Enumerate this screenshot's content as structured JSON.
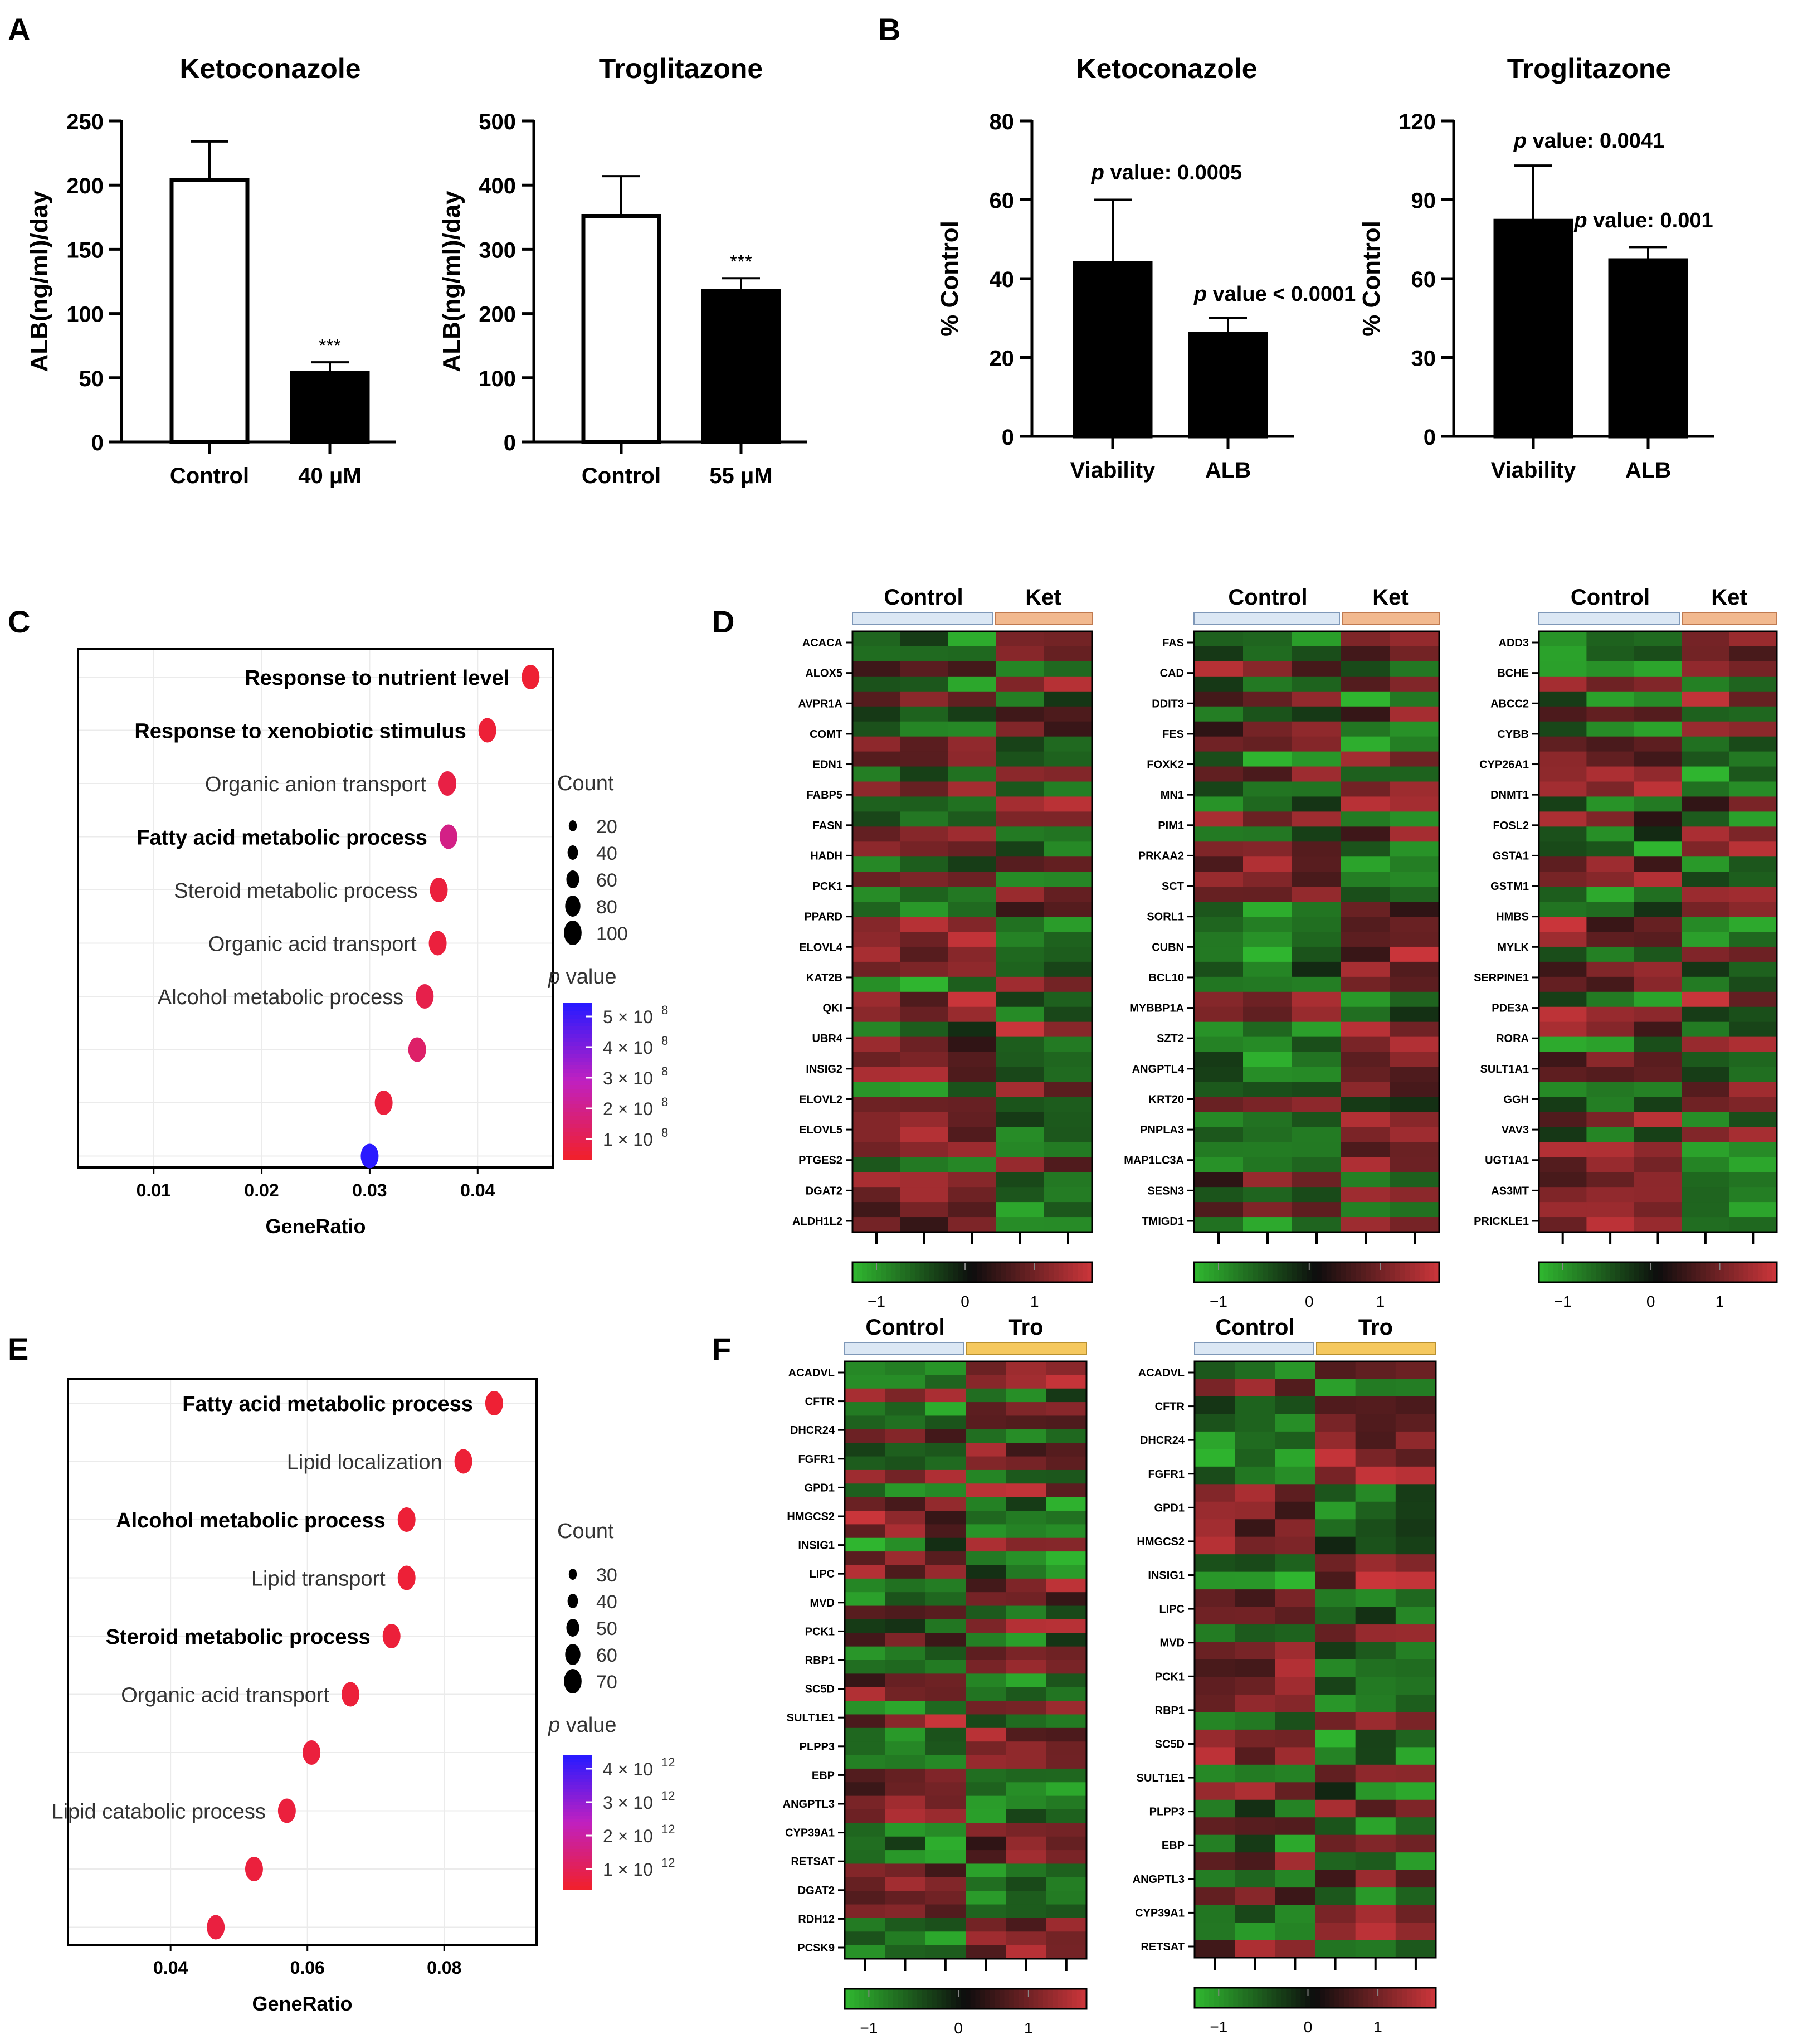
{
  "panel_letters": [
    "A",
    "B",
    "C",
    "D",
    "E",
    "F"
  ],
  "heat_colors": {
    "low": "#2fb52f",
    "mid": "#0d0d0d",
    "high": "#c9353a"
  },
  "chart_data": [
    {
      "id": "A1",
      "type": "bar",
      "title": "Ketoconazole",
      "ylabel": "ALB(ng/ml)/day",
      "categories": [
        "Control",
        "40 μM"
      ],
      "values": [
        204,
        54
      ],
      "errors": [
        30,
        8
      ],
      "fills": [
        "#ffffff",
        "#000000"
      ],
      "ylim": [
        0,
        250
      ],
      "yticks": [
        "0",
        "50",
        "100",
        "150",
        "200",
        "250"
      ],
      "annotations": [
        "",
        "***"
      ]
    },
    {
      "id": "A2",
      "type": "bar",
      "title": "Troglitazone",
      "ylabel": "ALB(ng/ml)/day",
      "categories": [
        "Control",
        "55 μM"
      ],
      "values": [
        352,
        235
      ],
      "errors": [
        62,
        20
      ],
      "fills": [
        "#ffffff",
        "#000000"
      ],
      "ylim": [
        0,
        500
      ],
      "yticks": [
        "0",
        "100",
        "200",
        "300",
        "400",
        "500"
      ],
      "annotations": [
        "",
        "***"
      ]
    },
    {
      "id": "B1",
      "type": "bar",
      "title": "Ketoconazole",
      "ylabel": "% Control",
      "categories": [
        "Viability",
        "ALB"
      ],
      "values": [
        44,
        26
      ],
      "errors": [
        16,
        4
      ],
      "fills": [
        "#000000",
        "#000000"
      ],
      "ylim": [
        0,
        80
      ],
      "yticks": [
        "0",
        "20",
        "40",
        "60",
        "80"
      ],
      "annotations": [
        "p value: 0.0005",
        "p value < 0.0001"
      ]
    },
    {
      "id": "B2",
      "type": "bar",
      "title": "Troglitazone",
      "ylabel": "% Control",
      "categories": [
        "Viability",
        "ALB"
      ],
      "values": [
        82,
        67
      ],
      "errors": [
        21,
        5
      ],
      "fills": [
        "#000000",
        "#000000"
      ],
      "ylim": [
        0,
        120
      ],
      "yticks": [
        "0",
        "30",
        "60",
        "90",
        "120"
      ],
      "annotations": [
        "p value: 0.0041",
        "p value: 0.001"
      ]
    },
    {
      "id": "C",
      "type": "scatter",
      "xlabel": "GeneRatio",
      "xlim": [
        0.003,
        0.047
      ],
      "xticks": [
        "0.01",
        "0.02",
        "0.03",
        "0.04"
      ],
      "xtick_values": [
        0.01,
        0.02,
        0.03,
        0.04
      ],
      "terms": [
        "Response to nutrient level",
        "Response to xenobiotic stimulus",
        "Organic anion transport",
        "Fatty acid metabolic process",
        "Steroid metabolic process",
        "Organic acid transport",
        "Alcohol metabolic process",
        "",
        "",
        ""
      ],
      "bold": [
        true,
        true,
        false,
        true,
        false,
        false,
        false,
        false,
        false,
        false
      ],
      "x": [
        0.0449,
        0.0409,
        0.0372,
        0.0373,
        0.0364,
        0.0363,
        0.0351,
        0.0344,
        0.0313,
        0.03
      ],
      "color_frac": [
        0.02,
        0.03,
        0.08,
        0.3,
        0.05,
        0.05,
        0.1,
        0.2,
        0.05,
        1.0
      ],
      "size_legend_title": "Count",
      "size_legend": [
        "20",
        "40",
        "60",
        "80",
        "100"
      ],
      "color_legend_title": "p value",
      "color_legend": [
        "5 × 10",
        "4 × 10",
        "3 × 10",
        "2 × 10",
        "1 × 10"
      ],
      "color_legend_exp": "8"
    },
    {
      "id": "E",
      "type": "scatter",
      "xlabel": "GeneRatio",
      "xlim": [
        0.025,
        0.0935
      ],
      "xticks": [
        "0.04",
        "0.06",
        "0.08"
      ],
      "xtick_values": [
        0.04,
        0.06,
        0.08
      ],
      "terms": [
        "Fatty acid metabolic process",
        "Lipid localization",
        "Alcohol metabolic process",
        "Lipid transport",
        "Steroid metabolic process",
        "Organic acid transport",
        "",
        "Lipid catabolic process",
        "",
        ""
      ],
      "bold": [
        true,
        false,
        true,
        false,
        true,
        false,
        false,
        false,
        false,
        false
      ],
      "x": [
        0.0873,
        0.0828,
        0.0745,
        0.0745,
        0.0723,
        0.0663,
        0.0606,
        0.057,
        0.0522,
        0.0466
      ],
      "color_frac": [
        0.02,
        0.03,
        0.03,
        0.03,
        0.04,
        0.04,
        0.05,
        0.05,
        0.05,
        0.06
      ],
      "size_legend_title": "Count",
      "size_legend": [
        "30",
        "40",
        "50",
        "60",
        "70"
      ],
      "color_legend_title": "p value",
      "color_legend": [
        "4 × 10",
        "3 × 10",
        "2 × 10",
        "1 × 10"
      ],
      "color_legend_exp": "12"
    },
    {
      "id": "D1",
      "type": "heatmap",
      "group1": "Control",
      "group2": "Ket",
      "cols": [
        3,
        2
      ],
      "rows": 40,
      "seed": 11,
      "genes": [
        "ACACA",
        "ALOX5",
        "AVPR1A",
        "COMT",
        "EDN1",
        "FABP5",
        "FASN",
        "HADH",
        "PCK1",
        "PPARD",
        "ELOVL4",
        "KAT2B",
        "QKI",
        "UBR4",
        "INSIG2",
        "ELOVL2",
        "ELOVL5",
        "PTGES2",
        "DGAT2",
        "ALDH1L2"
      ],
      "scale": [
        "−1",
        "0",
        "1"
      ]
    },
    {
      "id": "D2",
      "type": "heatmap",
      "group1": "Control",
      "group2": "Ket",
      "cols": [
        3,
        2
      ],
      "rows": 40,
      "seed": 23,
      "genes": [
        "FAS",
        "CAD",
        "DDIT3",
        "FES",
        "FOXK2",
        "MN1",
        "PIM1",
        "PRKAA2",
        "SCT",
        "SORL1",
        "CUBN",
        "BCL10",
        "MYBBP1A",
        "SZT2",
        "ANGPTL4",
        "KRT20",
        "PNPLA3",
        "MAP1LC3A",
        "SESN3",
        "TMIGD1"
      ],
      "scale": [
        "−1",
        "0",
        "1"
      ]
    },
    {
      "id": "D3",
      "type": "heatmap",
      "group1": "Control",
      "group2": "Ket",
      "cols": [
        3,
        2
      ],
      "rows": 40,
      "seed": 37,
      "genes": [
        "ADD3",
        "BCHE",
        "ABCC2",
        "CYBB",
        "CYP26A1",
        "DNMT1",
        "FOSL2",
        "GSTA1",
        "GSTM1",
        "HMBS",
        "MYLK",
        "SERPINE1",
        "PDE3A",
        "RORA",
        "SULT1A1",
        "GGH",
        "VAV3",
        "UGT1A1",
        "AS3MT",
        "PRICKLE1"
      ],
      "scale": [
        "−1",
        "0",
        "1"
      ]
    },
    {
      "id": "F1",
      "type": "heatmap",
      "group1": "Control",
      "group2": "Tro",
      "cols": [
        3,
        3
      ],
      "rows": 44,
      "seed": 51,
      "genes": [
        "ACADVL",
        "CFTR",
        "DHCR24",
        "FGFR1",
        "GPD1",
        "HMGCS2",
        "INSIG1",
        "LIPC",
        "MVD",
        "PCK1",
        "RBP1",
        "SC5D",
        "SULT1E1",
        "PLPP3",
        "EBP",
        "ANGPTL3",
        "CYP39A1",
        "RETSAT",
        "DGAT2",
        "RDH12",
        "PCSK9"
      ],
      "scale": [
        "−1",
        "0",
        "1"
      ]
    },
    {
      "id": "F2",
      "type": "heatmap",
      "group1": "Control",
      "group2": "Tro",
      "cols": [
        3,
        3
      ],
      "rows": 34,
      "seed": 67,
      "genes": [
        "ACADVL",
        "CFTR",
        "DHCR24",
        "FGFR1",
        "GPD1",
        "HMGCS2",
        "INSIG1",
        "LIPC",
        "MVD",
        "PCK1",
        "RBP1",
        "SC5D",
        "SULT1E1",
        "PLPP3",
        "EBP",
        "ANGPTL3",
        "CYP39A1",
        "RETSAT"
      ],
      "scale": [
        "−1",
        "0",
        "1"
      ]
    }
  ]
}
